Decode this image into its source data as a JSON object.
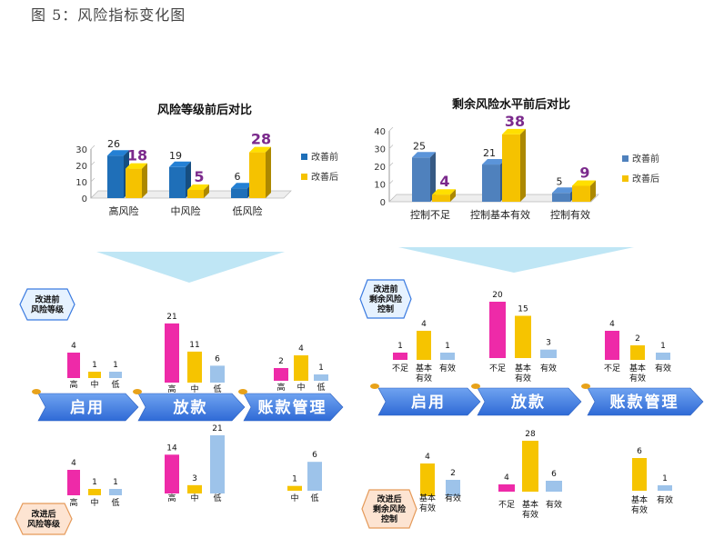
{
  "figure_title": "图 5：风险指标变化图",
  "colors": {
    "before": "#1f6fb8",
    "after": "#f5c200",
    "before_b": "#4f81bd",
    "after_b": "#f5c200",
    "pink": "#ee2aa8",
    "yellow": "#f6c400",
    "blue": "#9dc3ea",
    "arrow": "#3b7be0"
  },
  "chart_data": [
    {
      "type": "bar",
      "title": "风险等级前后对比",
      "categories": [
        "高风险",
        "中风险",
        "低风险"
      ],
      "ylim": [
        0,
        30
      ],
      "yticks": [
        0,
        10,
        20,
        30
      ],
      "legend_position": "right",
      "series": [
        {
          "name": "改善前",
          "values": [
            26,
            19,
            6
          ]
        },
        {
          "name": "改善后",
          "values": [
            18,
            5,
            28
          ]
        }
      ]
    },
    {
      "type": "bar",
      "title": "剩余风险水平前后对比",
      "categories": [
        "控制不足",
        "控制基本有效",
        "控制有效"
      ],
      "ylim": [
        0,
        40
      ],
      "yticks": [
        0,
        10,
        20,
        30,
        40
      ],
      "legend_position": "right",
      "series": [
        {
          "name": "改善前",
          "values": [
            25,
            21,
            5
          ]
        },
        {
          "name": "改善后",
          "values": [
            4,
            38,
            9
          ]
        }
      ]
    },
    {
      "type": "bar",
      "panel": "left-top",
      "stages": [
        {
          "labels": [
            "高",
            "中",
            "低"
          ],
          "values": [
            4,
            1,
            1
          ]
        },
        {
          "labels": [
            "高",
            "中",
            "低"
          ],
          "values": [
            21,
            11,
            6
          ]
        },
        {
          "labels": [
            "高",
            "中",
            "低"
          ],
          "values": [
            2,
            4,
            1
          ]
        }
      ]
    },
    {
      "type": "bar",
      "panel": "left-bottom",
      "stages": [
        {
          "labels": [
            "高",
            "中",
            "低"
          ],
          "values": [
            4,
            1,
            1
          ]
        },
        {
          "labels": [
            "高",
            "中",
            "低"
          ],
          "values": [
            14,
            3,
            21
          ]
        },
        {
          "labels": [
            "中",
            "低"
          ],
          "values": [
            1,
            6
          ]
        }
      ]
    },
    {
      "type": "bar",
      "panel": "right-top",
      "stages": [
        {
          "labels": [
            "不足",
            "基本\n有效",
            "有效"
          ],
          "values": [
            1,
            4,
            1
          ]
        },
        {
          "labels": [
            "不足",
            "基本\n有效",
            "有效"
          ],
          "values": [
            20,
            15,
            3
          ]
        },
        {
          "labels": [
            "不足",
            "基本\n有效",
            "有效"
          ],
          "values": [
            4,
            2,
            1
          ]
        }
      ]
    },
    {
      "type": "bar",
      "panel": "right-bottom",
      "stages": [
        {
          "labels": [
            "基本\n有效",
            "有效"
          ],
          "values": [
            4,
            2
          ]
        },
        {
          "labels": [
            "不足",
            "基本\n有效",
            "有效"
          ],
          "values": [
            4,
            28,
            6
          ]
        },
        {
          "labels": [
            "基本\n有效",
            "有效"
          ],
          "values": [
            6,
            1
          ]
        }
      ]
    }
  ],
  "process_arrows": {
    "left": [
      "启用",
      "放款",
      "账款管理"
    ],
    "right": [
      "启用",
      "放款",
      "账款管理"
    ]
  },
  "badges": {
    "lt": [
      "改进前",
      "风险等级"
    ],
    "lb": [
      "改进后",
      "风险等级"
    ],
    "rt": [
      "改进前",
      "剩余风险",
      "控制"
    ],
    "rb": [
      "改进后",
      "剩余风险",
      "控制"
    ]
  }
}
